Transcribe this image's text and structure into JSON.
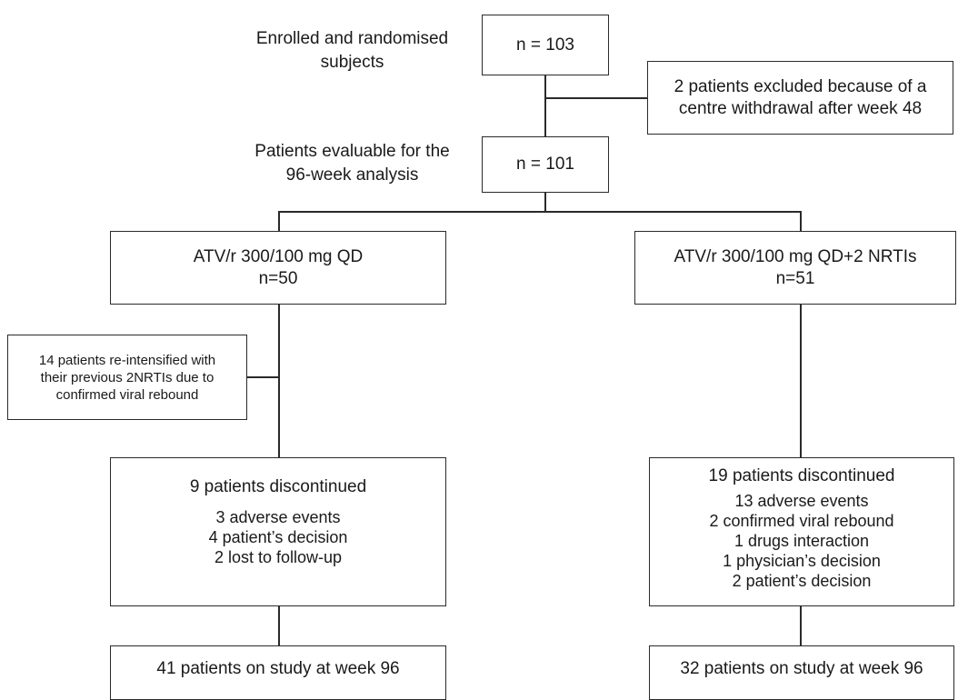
{
  "enrolled": {
    "label": [
      "Enrolled and randomised",
      "subjects"
    ],
    "count": "n = 103"
  },
  "excluded": {
    "lines": [
      "2 patients excluded because of a",
      "centre withdrawal after week 48"
    ]
  },
  "evaluable": {
    "label": [
      "Patients evaluable for the",
      "96-week analysis"
    ],
    "count": "n = 101"
  },
  "arm_left": {
    "title": "ATV/r 300/100 mg QD",
    "count": "n=50",
    "reintensified": [
      "14 patients re-intensified with",
      "their previous 2NRTIs due to",
      "confirmed viral rebound"
    ],
    "discontinued_title": "9 patients discontinued",
    "discontinued_reasons": [
      "3 adverse events",
      "4 patient’s decision",
      "2 lost to follow-up"
    ],
    "final": "41 patients on study at week 96"
  },
  "arm_right": {
    "title": "ATV/r 300/100 mg QD+2 NRTIs",
    "count": "n=51",
    "discontinued_title": "19 patients discontinued",
    "discontinued_reasons": [
      "13 adverse events",
      "2 confirmed viral rebound",
      "1 drugs interaction",
      "1 physician’s decision",
      "2 patient’s decision"
    ],
    "final": "32 patients on study at week 96"
  }
}
